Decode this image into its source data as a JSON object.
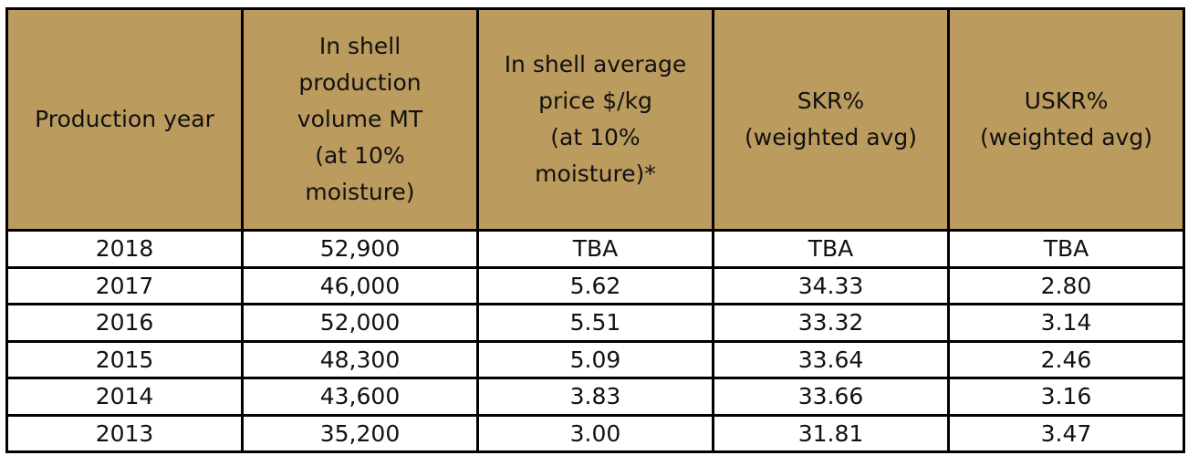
{
  "table": {
    "headers": [
      "Production year",
      "In shell\nproduction\nvolume MT\n(at 10%\nmoisture)",
      "In shell average\nprice $/kg\n(at 10%\nmoisture)*",
      "SKR%\n(weighted avg)",
      "USKR%\n(weighted avg)"
    ],
    "rows": [
      [
        "2018",
        "52,900",
        "TBA",
        "TBA",
        "TBA"
      ],
      [
        "2017",
        "46,000",
        "5.62",
        "34.33",
        "2.80"
      ],
      [
        "2016",
        "52,000",
        "5.51",
        "33.32",
        "3.14"
      ],
      [
        "2015",
        "48,300",
        "5.09",
        "33.64",
        "2.46"
      ],
      [
        "2014",
        "43,600",
        "3.83",
        "33.66",
        "3.16"
      ],
      [
        "2013",
        "35,200",
        "3.00",
        "31.81",
        "3.47"
      ]
    ]
  },
  "colors": {
    "header_background": "#bb9b5e",
    "border": "#000000"
  }
}
